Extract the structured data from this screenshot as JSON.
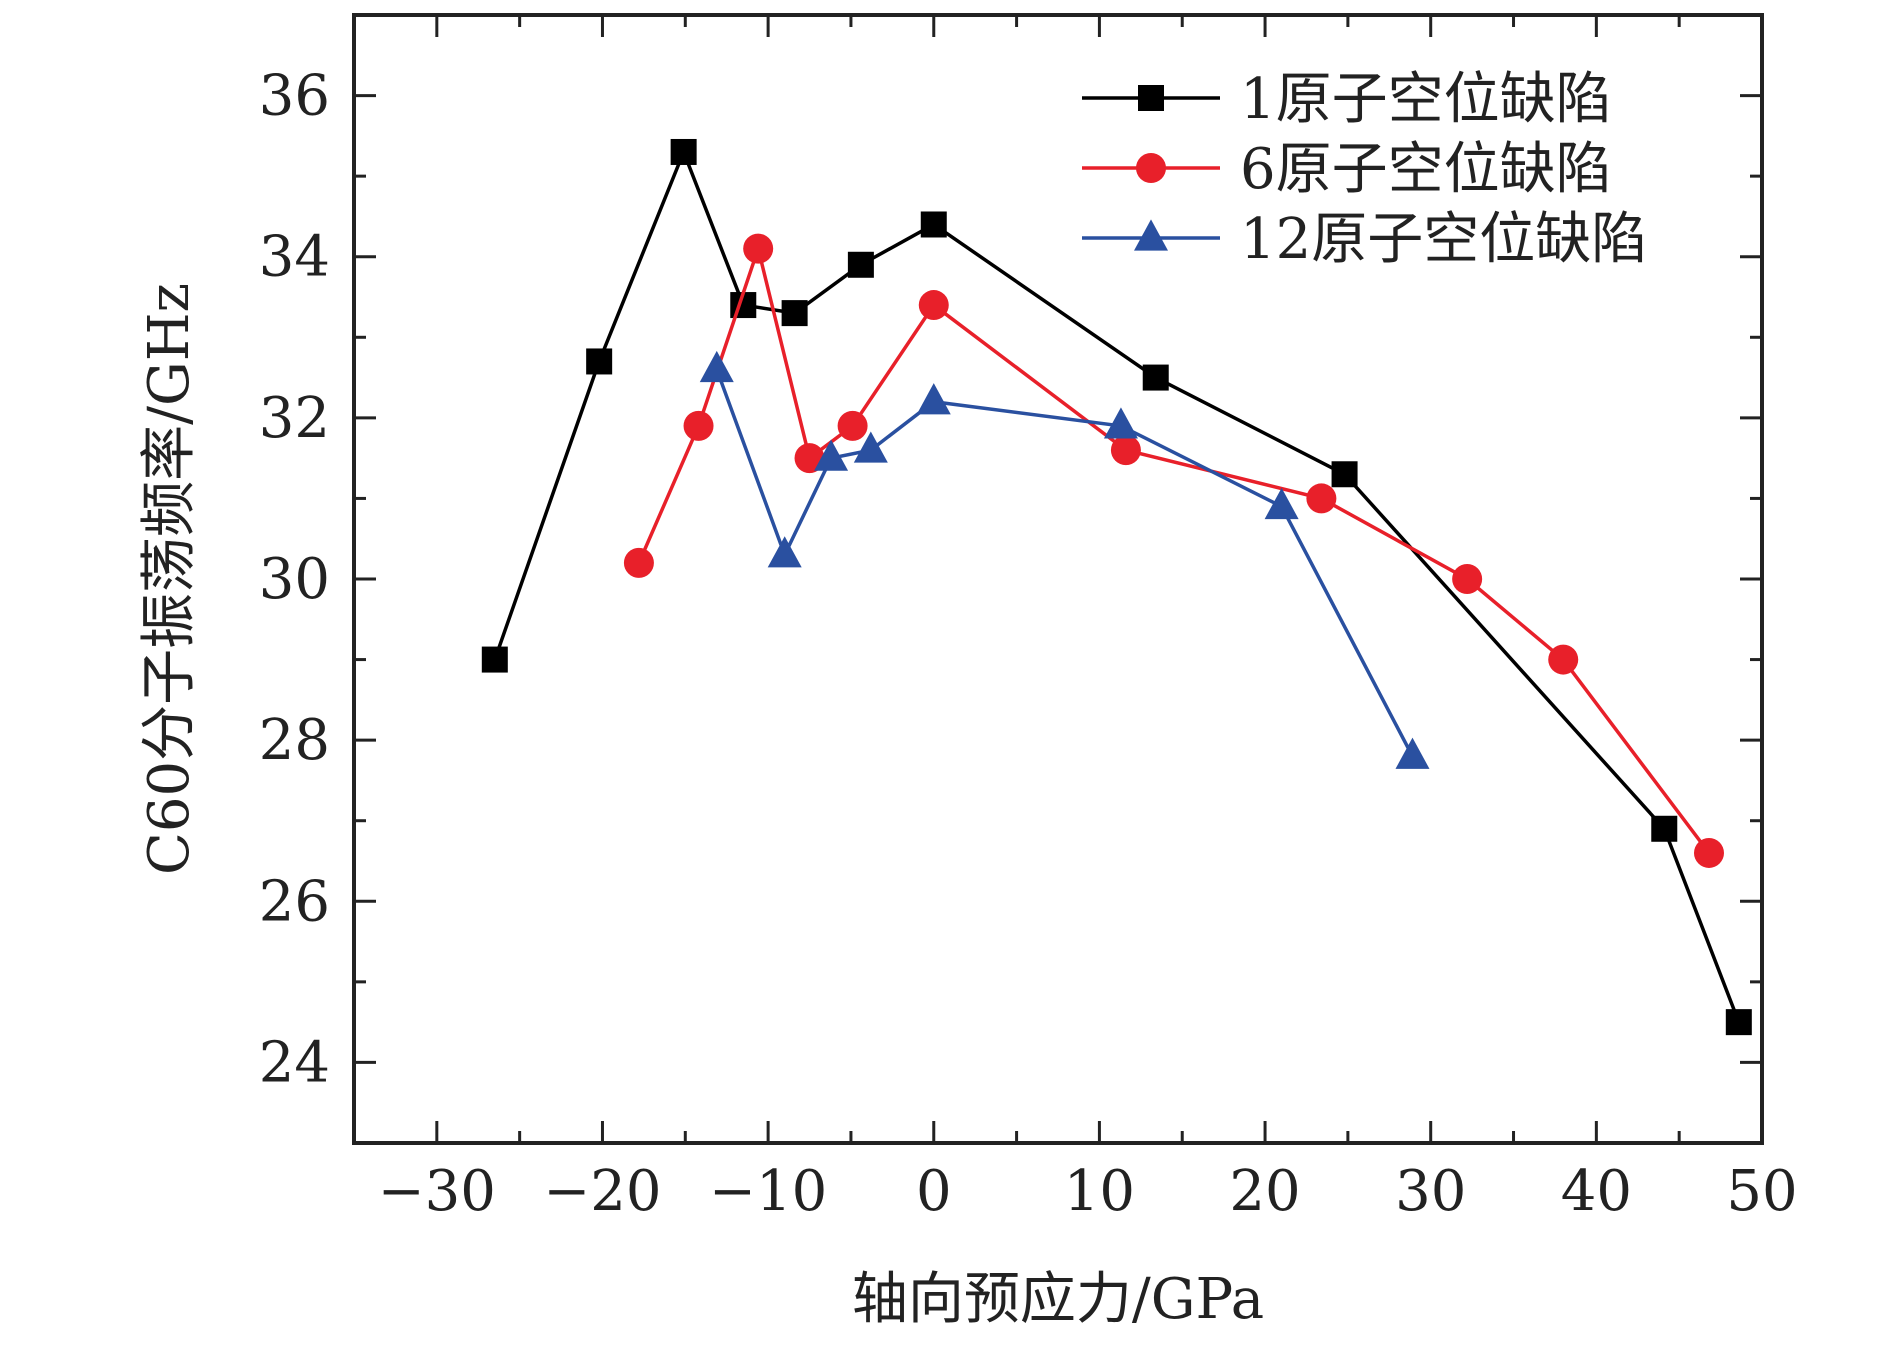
{
  "chart_data": {
    "type": "line",
    "xlabel": "轴向预应力/GPa",
    "ylabel": "C60分子振荡频率/GHz",
    "xlim": [
      -35,
      50
    ],
    "ylim": [
      23,
      37
    ],
    "x_ticks": [
      -30,
      -20,
      -10,
      0,
      10,
      20,
      30,
      40,
      50
    ],
    "x_tick_labels": [
      "−30",
      "−20",
      "−10",
      "0",
      "10",
      "20",
      "30",
      "40",
      "50"
    ],
    "y_ticks": [
      24,
      26,
      28,
      30,
      32,
      34,
      36
    ],
    "y_tick_labels": [
      "24",
      "26",
      "28",
      "30",
      "32",
      "34",
      "36"
    ],
    "grid": false,
    "legend_position": "top-right",
    "series": [
      {
        "name": "1原子空位缺陷",
        "color": "#000000",
        "marker": "square",
        "x": [
          -26.5,
          -20.2,
          -15.1,
          -11.5,
          -8.4,
          -4.4,
          0.0,
          13.4,
          24.8,
          44.1,
          48.6
        ],
        "y": [
          29.0,
          32.7,
          35.3,
          33.4,
          33.3,
          33.9,
          34.4,
          32.5,
          31.3,
          26.9,
          24.5
        ]
      },
      {
        "name": "6原子空位缺陷",
        "color": "#e8202a",
        "marker": "circle",
        "x": [
          -17.8,
          -14.2,
          -10.6,
          -7.5,
          -4.9,
          0.0,
          11.6,
          23.4,
          32.2,
          38.0,
          46.8
        ],
        "y": [
          30.2,
          31.9,
          34.1,
          31.5,
          31.9,
          33.4,
          31.6,
          31.0,
          30.0,
          29.0,
          26.6
        ]
      },
      {
        "name": "12原子空位缺陷",
        "color": "#2a50a0",
        "marker": "triangle",
        "x": [
          -13.1,
          -9.0,
          -6.2,
          -3.8,
          0.0,
          11.3,
          21.0,
          28.9
        ],
        "y": [
          32.6,
          30.3,
          31.5,
          31.6,
          32.2,
          31.9,
          30.9,
          27.8
        ]
      }
    ]
  }
}
